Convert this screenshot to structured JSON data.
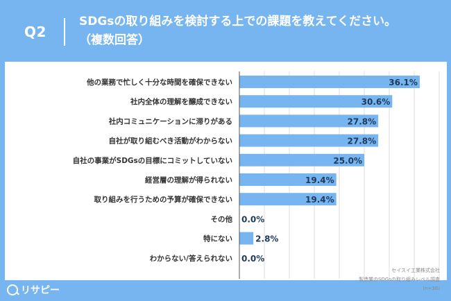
{
  "header": {
    "qnum": "Q2",
    "title_line1": "SDGsの取り組みを検討する上での課題を教えてください。",
    "title_line2": "（複数回答）"
  },
  "chart_data": {
    "type": "bar",
    "orientation": "horizontal",
    "categories": [
      "他の業務で忙しく十分な時間を確保できない",
      "社内全体の理解を醸成できない",
      "社内コミュニケーションに滞りがある",
      "自社が取り組むべき活動がわからない",
      "自社の事業がSDGsの目標にコミットしていない",
      "経営層の理解が得られない",
      "取り組みを行うための予算が確保できない",
      "その他",
      "特にない",
      "わからない/答えられない"
    ],
    "values": [
      36.1,
      30.6,
      27.8,
      27.8,
      25.0,
      19.4,
      19.4,
      0.0,
      2.8,
      0.0
    ],
    "labels": [
      "36.1%",
      "30.6%",
      "27.8%",
      "27.8%",
      "25.0%",
      "19.4%",
      "19.4%",
      "0.0%",
      "2.8%",
      "0.0%"
    ],
    "xlim": [
      0,
      40
    ],
    "grid": true,
    "bar_color": "#76b5f0"
  },
  "credit": {
    "line1": "セイスイ工業株式会社",
    "line2": "製造業のSDGsの取り組みレベル調査",
    "line3": "(n=36)"
  },
  "logo": {
    "text": "リサピー"
  }
}
